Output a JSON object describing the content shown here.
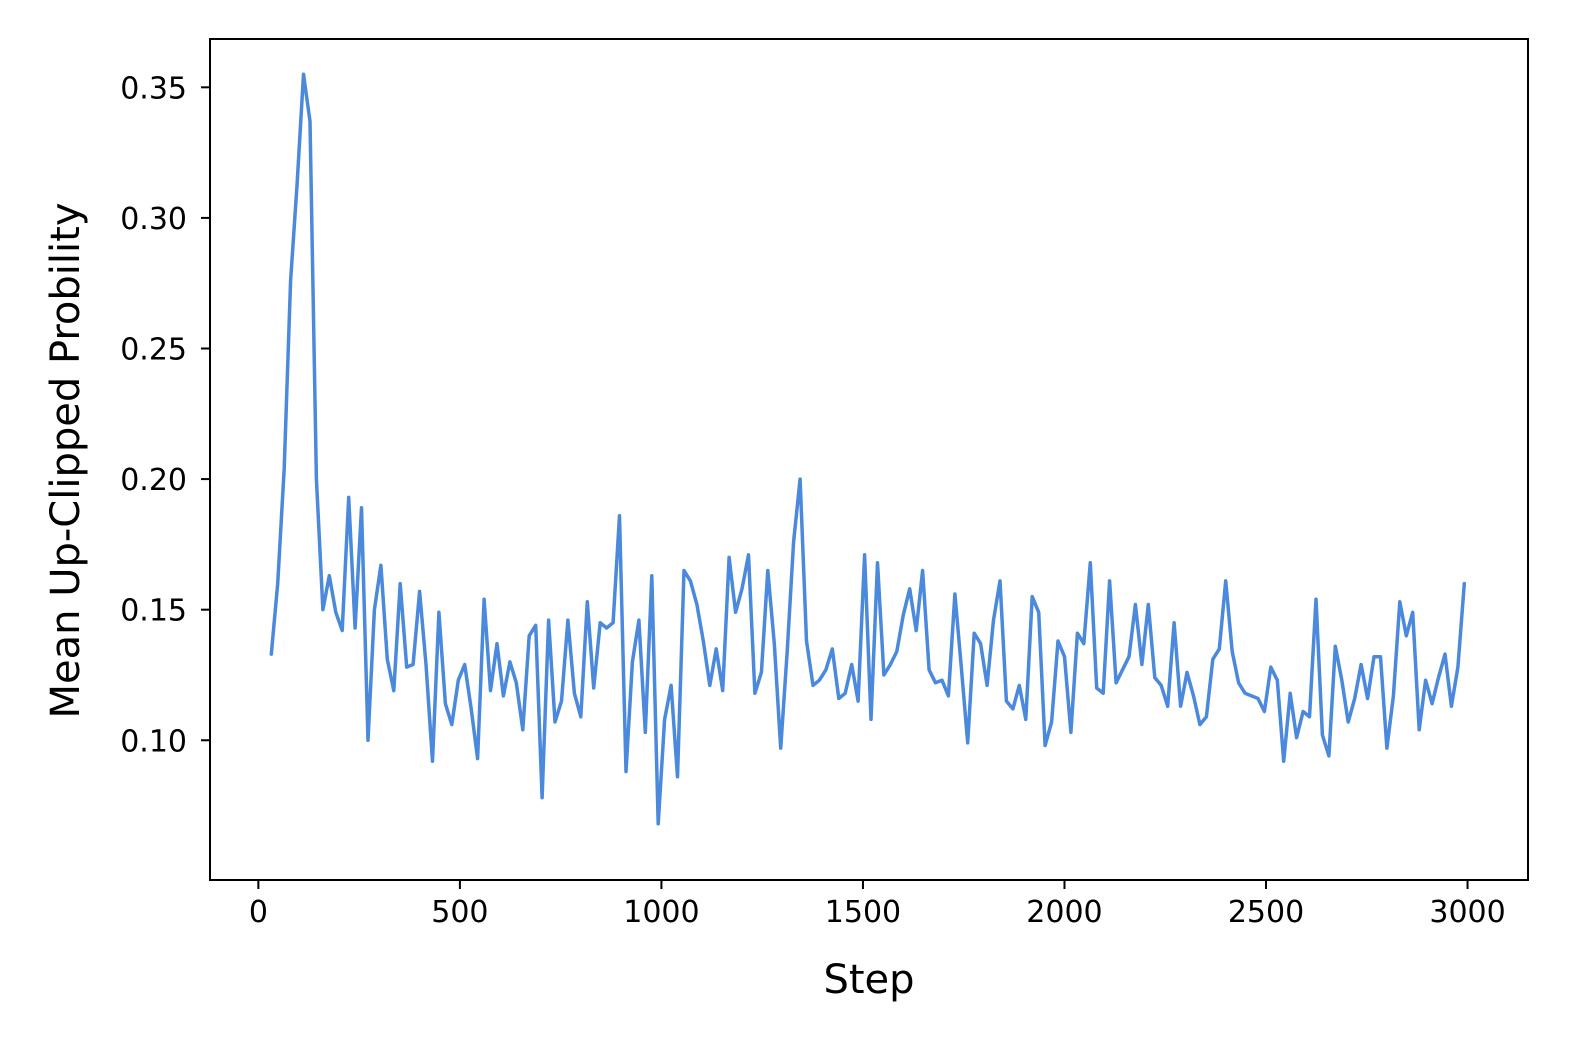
{
  "chart_data": {
    "type": "line",
    "title": "",
    "xlabel": "Step",
    "ylabel": "Mean Up-Clipped Probility",
    "xlim": [
      -120,
      3150
    ],
    "ylim": [
      0.0465,
      0.3685
    ],
    "xticks": [
      0,
      500,
      1000,
      1500,
      2000,
      2500,
      3000
    ],
    "xtick_labels": [
      "0",
      "500",
      "1000",
      "1500",
      "2000",
      "2500",
      "3000"
    ],
    "yticks": [
      0.1,
      0.15,
      0.2,
      0.25,
      0.3,
      0.35
    ],
    "ytick_labels": [
      "0.10",
      "0.15",
      "0.20",
      "0.25",
      "0.30",
      "0.35"
    ],
    "grid": false,
    "legend": "none",
    "colors": {
      "line": "#4a89dc",
      "frame": "#000000"
    },
    "series": [
      {
        "x": [
          32,
          48,
          64,
          80,
          96,
          112,
          128,
          144,
          160,
          176,
          192,
          208,
          224,
          240,
          256,
          272,
          288,
          304,
          320,
          336,
          352,
          368,
          384,
          400,
          416,
          432,
          448,
          464,
          480,
          496,
          512,
          528,
          544,
          560,
          576,
          592,
          608,
          624,
          640,
          656,
          672,
          688,
          704,
          720,
          736,
          752,
          768,
          784,
          800,
          816,
          832,
          848,
          864,
          880,
          896,
          912,
          928,
          944,
          960,
          976,
          992,
          1008,
          1024,
          1040,
          1056,
          1072,
          1088,
          1104,
          1120,
          1136,
          1152,
          1168,
          1184,
          1200,
          1216,
          1232,
          1248,
          1264,
          1280,
          1296,
          1312,
          1328,
          1344,
          1360,
          1376,
          1392,
          1408,
          1424,
          1440,
          1456,
          1472,
          1488,
          1504,
          1520,
          1536,
          1552,
          1568,
          1584,
          1600,
          1616,
          1632,
          1648,
          1664,
          1680,
          1696,
          1712,
          1728,
          1744,
          1760,
          1776,
          1792,
          1808,
          1824,
          1840,
          1856,
          1872,
          1888,
          1904,
          1920,
          1936,
          1952,
          1968,
          1984,
          2000,
          2016,
          2032,
          2048,
          2064,
          2080,
          2096,
          2112,
          2128,
          2144,
          2160,
          2176,
          2192,
          2208,
          2224,
          2240,
          2256,
          2272,
          2288,
          2304,
          2320,
          2336,
          2352,
          2368,
          2384,
          2400,
          2416,
          2432,
          2448,
          2464,
          2480,
          2496,
          2512,
          2528,
          2544,
          2560,
          2576,
          2592,
          2608,
          2624,
          2640,
          2656,
          2672,
          2688,
          2704,
          2720,
          2736,
          2752,
          2768,
          2784,
          2800,
          2816,
          2832,
          2848,
          2864,
          2880,
          2896,
          2912,
          2928,
          2944,
          2960,
          2976,
          2992
        ],
        "values": [
          0.133,
          0.16,
          0.204,
          0.276,
          0.313,
          0.355,
          0.337,
          0.2,
          0.15,
          0.163,
          0.149,
          0.142,
          0.193,
          0.143,
          0.189,
          0.1,
          0.15,
          0.167,
          0.131,
          0.119,
          0.16,
          0.128,
          0.129,
          0.157,
          0.129,
          0.092,
          0.149,
          0.114,
          0.106,
          0.123,
          0.129,
          0.112,
          0.093,
          0.154,
          0.119,
          0.137,
          0.117,
          0.13,
          0.122,
          0.104,
          0.14,
          0.144,
          0.078,
          0.146,
          0.107,
          0.115,
          0.146,
          0.118,
          0.109,
          0.153,
          0.12,
          0.145,
          0.143,
          0.145,
          0.186,
          0.088,
          0.13,
          0.146,
          0.103,
          0.163,
          0.068,
          0.108,
          0.121,
          0.086,
          0.165,
          0.161,
          0.152,
          0.138,
          0.121,
          0.135,
          0.119,
          0.17,
          0.149,
          0.158,
          0.171,
          0.118,
          0.126,
          0.165,
          0.137,
          0.097,
          0.134,
          0.176,
          0.2,
          0.138,
          0.121,
          0.123,
          0.127,
          0.135,
          0.116,
          0.118,
          0.129,
          0.115,
          0.171,
          0.108,
          0.168,
          0.125,
          0.129,
          0.134,
          0.148,
          0.158,
          0.142,
          0.165,
          0.127,
          0.122,
          0.123,
          0.117,
          0.156,
          0.128,
          0.099,
          0.141,
          0.137,
          0.121,
          0.146,
          0.161,
          0.115,
          0.112,
          0.121,
          0.108,
          0.155,
          0.149,
          0.098,
          0.107,
          0.138,
          0.132,
          0.103,
          0.141,
          0.137,
          0.168,
          0.12,
          0.118,
          0.161,
          0.122,
          0.127,
          0.132,
          0.152,
          0.129,
          0.152,
          0.124,
          0.121,
          0.113,
          0.145,
          0.113,
          0.126,
          0.117,
          0.106,
          0.109,
          0.131,
          0.135,
          0.161,
          0.134,
          0.122,
          0.118,
          0.117,
          0.116,
          0.111,
          0.128,
          0.123,
          0.092,
          0.118,
          0.101,
          0.111,
          0.109,
          0.154,
          0.102,
          0.094,
          0.136,
          0.123,
          0.107,
          0.116,
          0.129,
          0.116,
          0.132,
          0.132,
          0.097,
          0.117,
          0.153,
          0.14,
          0.149,
          0.104,
          0.123,
          0.114,
          0.124,
          0.133,
          0.113,
          0.128,
          0.16
        ]
      }
    ]
  }
}
